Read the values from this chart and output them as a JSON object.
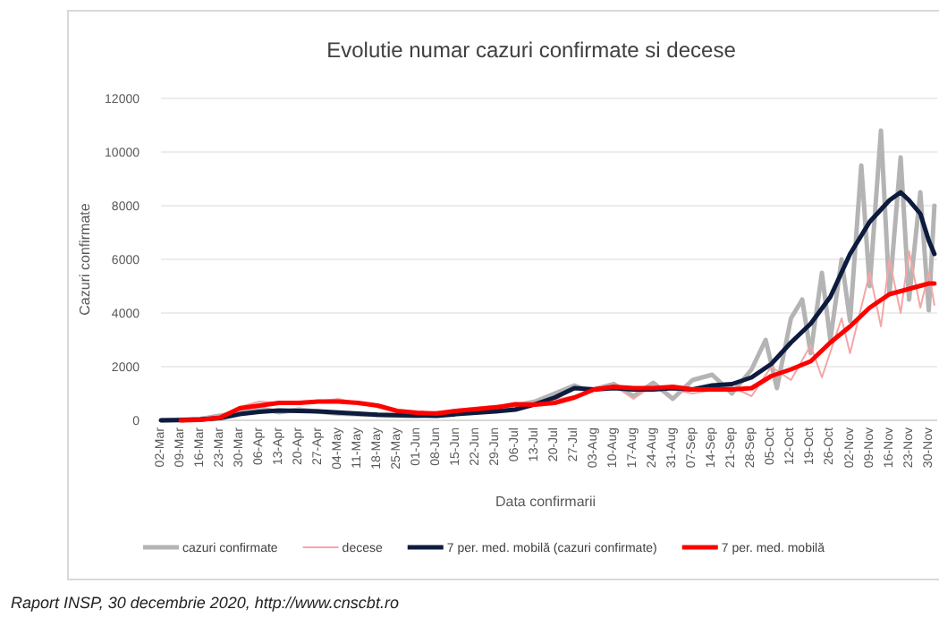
{
  "chart_data": {
    "type": "line",
    "title": "Evolutie numar cazuri confirmate si decese",
    "xlabel": "Data confirmarii",
    "ylabel": "Cazuri confirmate",
    "annotations": [
      "Raport INSP, 30 decembrie 2020, http://www.cnscbt.ro"
    ],
    "xlim": [
      "2020-03-02",
      "2020-12-03"
    ],
    "xticks": [
      {
        "value": "2020-03-02",
        "label": "02-Mar"
      },
      {
        "value": "2020-03-09",
        "label": "09-Mar"
      },
      {
        "value": "2020-03-16",
        "label": "16-Mar"
      },
      {
        "value": "2020-03-23",
        "label": "23-Mar"
      },
      {
        "value": "2020-03-30",
        "label": "30-Mar"
      },
      {
        "value": "2020-04-06",
        "label": "06-Apr"
      },
      {
        "value": "2020-04-13",
        "label": "13-Apr"
      },
      {
        "value": "2020-04-20",
        "label": "20-Apr"
      },
      {
        "value": "2020-04-27",
        "label": "27-Apr"
      },
      {
        "value": "2020-05-04",
        "label": "04-May"
      },
      {
        "value": "2020-05-11",
        "label": "11-May"
      },
      {
        "value": "2020-05-18",
        "label": "18-May"
      },
      {
        "value": "2020-05-25",
        "label": "25-May"
      },
      {
        "value": "2020-06-01",
        "label": "01-Jun"
      },
      {
        "value": "2020-06-08",
        "label": "08-Jun"
      },
      {
        "value": "2020-06-15",
        "label": "15-Jun"
      },
      {
        "value": "2020-06-22",
        "label": "22-Jun"
      },
      {
        "value": "2020-06-29",
        "label": "29-Jun"
      },
      {
        "value": "2020-07-06",
        "label": "06-Jul"
      },
      {
        "value": "2020-07-13",
        "label": "13-Jul"
      },
      {
        "value": "2020-07-20",
        "label": "20-Jul"
      },
      {
        "value": "2020-07-27",
        "label": "27-Jul"
      },
      {
        "value": "2020-08-03",
        "label": "03-Aug"
      },
      {
        "value": "2020-08-10",
        "label": "10-Aug"
      },
      {
        "value": "2020-08-17",
        "label": "17-Aug"
      },
      {
        "value": "2020-08-24",
        "label": "24-Aug"
      },
      {
        "value": "2020-08-31",
        "label": "31-Aug"
      },
      {
        "value": "2020-09-07",
        "label": "07-Sep"
      },
      {
        "value": "2020-09-14",
        "label": "14-Sep"
      },
      {
        "value": "2020-09-21",
        "label": "21-Sep"
      },
      {
        "value": "2020-09-28",
        "label": "28-Sep"
      },
      {
        "value": "2020-10-05",
        "label": "05-Oct"
      },
      {
        "value": "2020-10-12",
        "label": "12-Oct"
      },
      {
        "value": "2020-10-19",
        "label": "19-Oct"
      },
      {
        "value": "2020-10-26",
        "label": "26-Oct"
      },
      {
        "value": "2020-11-02",
        "label": "02-Nov"
      },
      {
        "value": "2020-11-09",
        "label": "09-Nov"
      },
      {
        "value": "2020-11-16",
        "label": "16-Nov"
      },
      {
        "value": "2020-11-23",
        "label": "23-Nov"
      },
      {
        "value": "2020-11-30",
        "label": "30-Nov"
      }
    ],
    "ylim": [
      0,
      12000
    ],
    "yticks": [
      0,
      2000,
      4000,
      6000,
      8000,
      10000,
      12000
    ],
    "grid": "y",
    "legend": "bottom",
    "series": [
      {
        "name": "cazuri confirmate",
        "color": "#b4b4b4",
        "x": [
          "2020-03-02",
          "2020-03-16",
          "2020-03-30",
          "2020-04-06",
          "2020-04-13",
          "2020-04-20",
          "2020-05-04",
          "2020-05-18",
          "2020-06-01",
          "2020-06-15",
          "2020-06-29",
          "2020-07-13",
          "2020-07-27",
          "2020-08-01",
          "2020-08-10",
          "2020-08-17",
          "2020-08-24",
          "2020-08-31",
          "2020-09-07",
          "2020-09-14",
          "2020-09-21",
          "2020-09-28",
          "2020-10-03",
          "2020-10-07",
          "2020-10-12",
          "2020-10-16",
          "2020-10-19",
          "2020-10-23",
          "2020-10-26",
          "2020-10-30",
          "2020-11-02",
          "2020-11-06",
          "2020-11-09",
          "2020-11-13",
          "2020-11-16",
          "2020-11-20",
          "2020-11-23",
          "2020-11-27",
          "2020-11-30",
          "2020-12-02"
        ],
        "values": [
          0,
          50,
          300,
          450,
          300,
          400,
          250,
          200,
          150,
          300,
          400,
          700,
          1300,
          1100,
          1350,
          900,
          1400,
          800,
          1500,
          1700,
          1000,
          1900,
          3000,
          1200,
          3800,
          4500,
          2500,
          5500,
          3000,
          6000,
          3700,
          9500,
          5000,
          10800,
          4700,
          9800,
          4500,
          8500,
          4100,
          8000
        ]
      },
      {
        "name": "decese",
        "color": "#f4a6a6",
        "x": [
          "2020-03-09",
          "2020-03-23",
          "2020-03-30",
          "2020-04-06",
          "2020-04-20",
          "2020-05-04",
          "2020-05-18",
          "2020-06-01",
          "2020-06-15",
          "2020-06-29",
          "2020-07-13",
          "2020-07-27",
          "2020-08-10",
          "2020-08-17",
          "2020-08-24",
          "2020-09-07",
          "2020-09-21",
          "2020-09-28",
          "2020-10-05",
          "2020-10-12",
          "2020-10-19",
          "2020-10-23",
          "2020-10-30",
          "2020-11-02",
          "2020-11-09",
          "2020-11-13",
          "2020-11-16",
          "2020-11-20",
          "2020-11-23",
          "2020-11-27",
          "2020-11-30",
          "2020-12-02"
        ],
        "values": [
          0,
          150,
          500,
          700,
          600,
          800,
          500,
          250,
          400,
          550,
          650,
          900,
          1300,
          800,
          1300,
          1000,
          1250,
          900,
          2000,
          1500,
          2800,
          1600,
          3800,
          2500,
          5500,
          3500,
          6000,
          4000,
          6300,
          4200,
          5500,
          4300
        ]
      },
      {
        "name": "7 per. med. mobilă (cazuri confirmate)",
        "color": "#0d1b3e",
        "x": [
          "2020-03-02",
          "2020-03-09",
          "2020-03-16",
          "2020-03-23",
          "2020-03-30",
          "2020-04-06",
          "2020-04-13",
          "2020-04-20",
          "2020-04-27",
          "2020-05-04",
          "2020-05-11",
          "2020-05-18",
          "2020-05-25",
          "2020-06-01",
          "2020-06-08",
          "2020-06-15",
          "2020-06-22",
          "2020-06-29",
          "2020-07-06",
          "2020-07-13",
          "2020-07-20",
          "2020-07-27",
          "2020-08-03",
          "2020-08-10",
          "2020-08-17",
          "2020-08-24",
          "2020-08-31",
          "2020-09-07",
          "2020-09-14",
          "2020-09-21",
          "2020-09-28",
          "2020-10-05",
          "2020-10-12",
          "2020-10-19",
          "2020-10-26",
          "2020-11-02",
          "2020-11-09",
          "2020-11-16",
          "2020-11-20",
          "2020-11-23",
          "2020-11-27",
          "2020-11-30",
          "2020-12-02"
        ],
        "values": [
          0,
          10,
          30,
          80,
          230,
          320,
          370,
          350,
          330,
          290,
          250,
          210,
          190,
          180,
          170,
          230,
          280,
          330,
          400,
          600,
          850,
          1200,
          1150,
          1200,
          1150,
          1150,
          1200,
          1150,
          1300,
          1350,
          1600,
          2100,
          2900,
          3600,
          4600,
          6200,
          7400,
          8200,
          8500,
          8200,
          7700,
          6700,
          6200
        ]
      },
      {
        "name": "7 per. med. mobilă",
        "color": "#ff0000",
        "x": [
          "2020-03-09",
          "2020-03-16",
          "2020-03-23",
          "2020-03-30",
          "2020-04-06",
          "2020-04-13",
          "2020-04-20",
          "2020-04-27",
          "2020-05-04",
          "2020-05-11",
          "2020-05-18",
          "2020-05-25",
          "2020-06-01",
          "2020-06-08",
          "2020-06-15",
          "2020-06-22",
          "2020-06-29",
          "2020-07-06",
          "2020-07-13",
          "2020-07-20",
          "2020-07-27",
          "2020-08-03",
          "2020-08-10",
          "2020-08-17",
          "2020-08-24",
          "2020-08-31",
          "2020-09-07",
          "2020-09-14",
          "2020-09-21",
          "2020-09-28",
          "2020-10-05",
          "2020-10-12",
          "2020-10-19",
          "2020-10-26",
          "2020-11-02",
          "2020-11-09",
          "2020-11-16",
          "2020-11-23",
          "2020-11-30",
          "2020-12-02"
        ],
        "values": [
          0,
          20,
          100,
          450,
          550,
          650,
          650,
          700,
          700,
          650,
          550,
          350,
          280,
          250,
          350,
          420,
          480,
          600,
          580,
          650,
          850,
          1150,
          1250,
          1200,
          1200,
          1250,
          1150,
          1150,
          1150,
          1200,
          1650,
          1900,
          2200,
          2900,
          3500,
          4200,
          4700,
          4900,
          5100,
          5100
        ]
      }
    ]
  }
}
